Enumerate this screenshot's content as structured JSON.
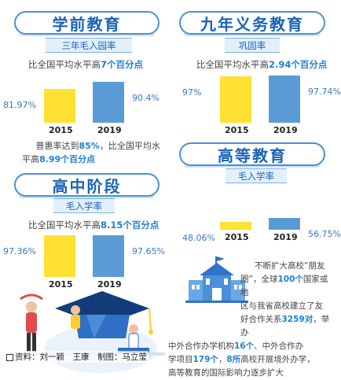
{
  "chart_data": [
    {
      "type": "bar",
      "title": "学前教育",
      "subtitle": "三年毛入园率",
      "statement": {
        "prefix": "比全国平均水平高",
        "value": "7个百分点"
      },
      "categories": [
        "2015",
        "2019"
      ],
      "values": [
        81.97,
        90.4
      ],
      "value_labels": [
        "81.97%",
        "90.4%"
      ],
      "colors": [
        "#ffe033",
        "#5b9bd5"
      ],
      "note": {
        "line1_prefix": "普惠率达到",
        "line1_value": "85%",
        "line1_suffix": "，比全国平均水",
        "line2_prefix": "平高",
        "line2_value": "8.99个百分点"
      }
    },
    {
      "type": "bar",
      "title": "九年义务教育",
      "subtitle": "巩固率",
      "statement": {
        "prefix": "比全国平均水平高",
        "value": "2.94个百分点"
      },
      "categories": [
        "2015",
        "2019"
      ],
      "values": [
        97,
        97.74
      ],
      "value_labels": [
        "97%",
        "97.74%"
      ],
      "colors": [
        "#ffe033",
        "#5b9bd5"
      ]
    },
    {
      "type": "bar",
      "title": "高中阶段",
      "subtitle": "毛入学率",
      "statement": {
        "prefix": "比全国平均水平高",
        "value": "8.15个百分点"
      },
      "categories": [
        "2015",
        "2019"
      ],
      "values": [
        97.36,
        97.65
      ],
      "value_labels": [
        "97.36%",
        "97.65%"
      ],
      "colors": [
        "#ffe033",
        "#5b9bd5"
      ]
    },
    {
      "type": "bar",
      "title": "高等教育",
      "subtitle": "毛入学率",
      "categories": [
        "2015",
        "2019"
      ],
      "values": [
        48.06,
        56.75
      ],
      "value_labels": [
        "48.06%",
        "56.75%"
      ],
      "colors": [
        "#ffe033",
        "#5b9bd5"
      ]
    }
  ],
  "higher_ed_text": {
    "l1": "不断扩大高校“朋友",
    "l2a": "圈”，全球",
    "l2b": "100个",
    "l2c": "国家或地",
    "l3": "区与我省高校建立了友",
    "l4a": "好合作关系",
    "l4b": "3259对",
    "l4c": "，举办",
    "l5a": "中外合作办学机构",
    "l5b": "16个",
    "l5c": "、中外合作办",
    "l6a": "学项目",
    "l6b": "179个",
    "l6c": "，",
    "l6d": "8所",
    "l6e": "高校开展境外办学，",
    "l7": "高等教育的国际影响力逐步扩大"
  },
  "credit": "资料：刘一颖　王康　制图：马立莹"
}
